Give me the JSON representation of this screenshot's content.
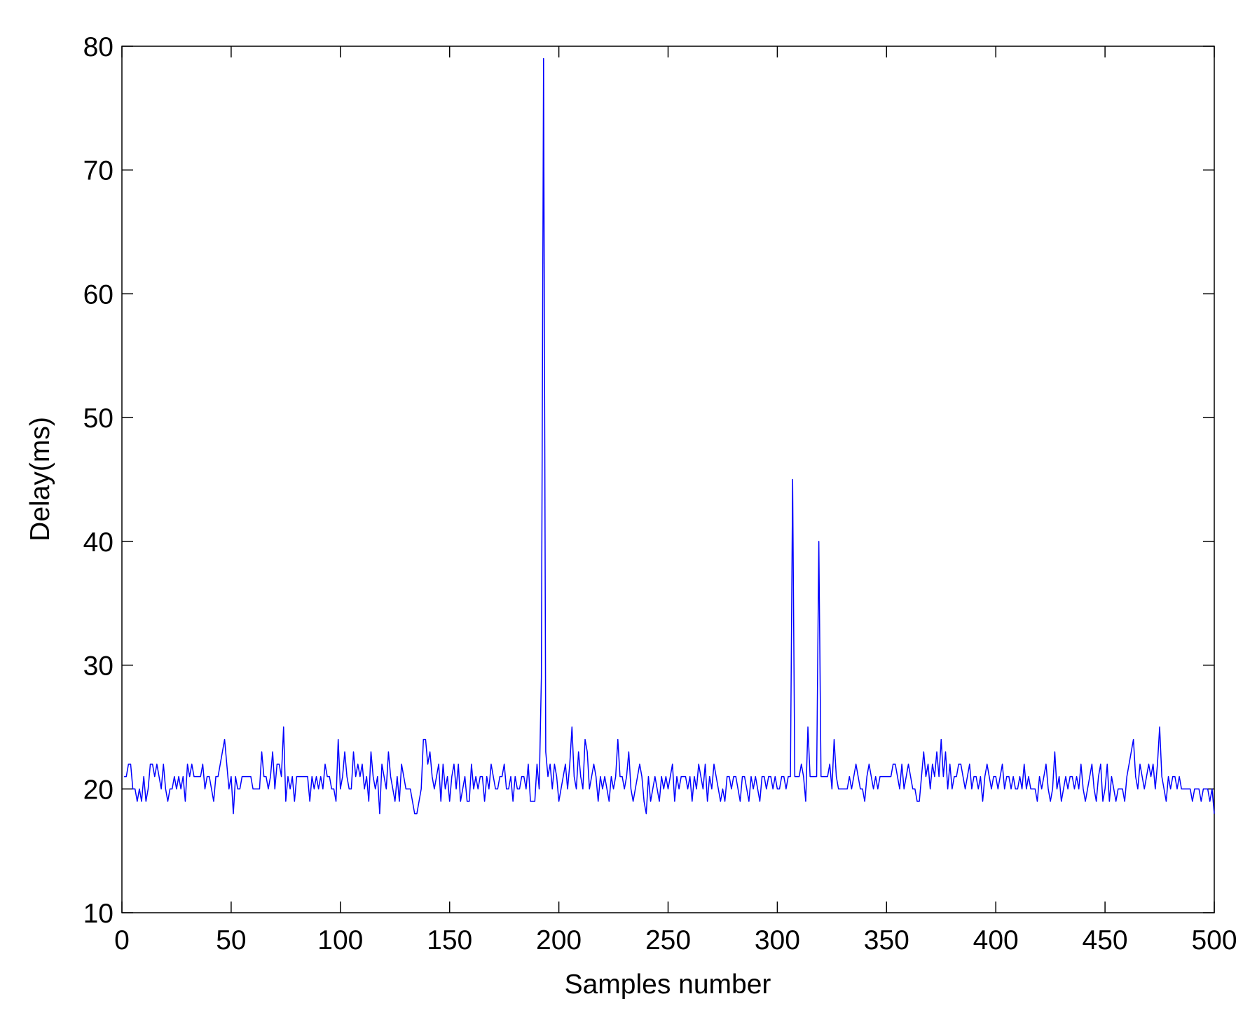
{
  "chart_data": {
    "type": "line",
    "xlabel": "Samples number",
    "ylabel": "Delay(ms)",
    "color": "#0000ff",
    "xlim": [
      0,
      500
    ],
    "xticks": [
      0,
      50,
      100,
      150,
      200,
      250,
      300,
      350,
      400,
      450,
      500
    ],
    "ylim": [
      10,
      80
    ],
    "yticks": [
      10,
      20,
      30,
      40,
      50,
      60,
      70,
      80
    ],
    "x": [
      1,
      2,
      3,
      4,
      5,
      6,
      7,
      8,
      9,
      10,
      11,
      12,
      13,
      14,
      15,
      16,
      17,
      18,
      19,
      20,
      21,
      22,
      23,
      24,
      25,
      26,
      27,
      28,
      29,
      30,
      31,
      32,
      33,
      34,
      35,
      36,
      37,
      38,
      39,
      40,
      41,
      42,
      43,
      44,
      45,
      46,
      47,
      48,
      49,
      50,
      51,
      52,
      53,
      54,
      55,
      56,
      57,
      58,
      59,
      60,
      61,
      62,
      63,
      64,
      65,
      66,
      67,
      68,
      69,
      70,
      71,
      72,
      73,
      74,
      75,
      76,
      77,
      78,
      79,
      80,
      81,
      82,
      83,
      84,
      85,
      86,
      87,
      88,
      89,
      90,
      91,
      92,
      93,
      94,
      95,
      96,
      97,
      98,
      99,
      100,
      101,
      102,
      103,
      104,
      105,
      106,
      107,
      108,
      109,
      110,
      111,
      112,
      113,
      114,
      115,
      116,
      117,
      118,
      119,
      120,
      121,
      122,
      123,
      124,
      125,
      126,
      127,
      128,
      129,
      130,
      131,
      132,
      133,
      134,
      135,
      136,
      137,
      138,
      139,
      140,
      141,
      142,
      143,
      144,
      145,
      146,
      147,
      148,
      149,
      150,
      151,
      152,
      153,
      154,
      155,
      156,
      157,
      158,
      159,
      160,
      161,
      162,
      163,
      164,
      165,
      166,
      167,
      168,
      169,
      170,
      171,
      172,
      173,
      174,
      175,
      176,
      177,
      178,
      179,
      180,
      181,
      182,
      183,
      184,
      185,
      186,
      187,
      188,
      189,
      190,
      191,
      192,
      193,
      194,
      195,
      196,
      197,
      198,
      199,
      200,
      201,
      202,
      203,
      204,
      205,
      206,
      207,
      208,
      209,
      210,
      211,
      212,
      213,
      214,
      215,
      216,
      217,
      218,
      219,
      220,
      221,
      222,
      223,
      224,
      225,
      226,
      227,
      228,
      229,
      230,
      231,
      232,
      233,
      234,
      235,
      236,
      237,
      238,
      239,
      240,
      241,
      242,
      243,
      244,
      245,
      246,
      247,
      248,
      249,
      250,
      251,
      252,
      253,
      254,
      255,
      256,
      257,
      258,
      259,
      260,
      261,
      262,
      263,
      264,
      265,
      266,
      267,
      268,
      269,
      270,
      271,
      272,
      273,
      274,
      275,
      276,
      277,
      278,
      279,
      280,
      281,
      282,
      283,
      284,
      285,
      286,
      287,
      288,
      289,
      290,
      291,
      292,
      293,
      294,
      295,
      296,
      297,
      298,
      299,
      300,
      301,
      302,
      303,
      304,
      305,
      306,
      307,
      308,
      309,
      310,
      311,
      312,
      313,
      314,
      315,
      316,
      317,
      318,
      319,
      320,
      321,
      322,
      323,
      324,
      325,
      326,
      327,
      328,
      329,
      330,
      331,
      332,
      333,
      334,
      335,
      336,
      337,
      338,
      339,
      340,
      341,
      342,
      343,
      344,
      345,
      346,
      347,
      348,
      349,
      350,
      351,
      352,
      353,
      354,
      355,
      356,
      357,
      358,
      359,
      360,
      361,
      362,
      363,
      364,
      365,
      366,
      367,
      368,
      369,
      370,
      371,
      372,
      373,
      374,
      375,
      376,
      377,
      378,
      379,
      380,
      381,
      382,
      383,
      384,
      385,
      386,
      387,
      388,
      389,
      390,
      391,
      392,
      393,
      394,
      395,
      396,
      397,
      398,
      399,
      400,
      401,
      402,
      403,
      404,
      405,
      406,
      407,
      408,
      409,
      410,
      411,
      412,
      413,
      414,
      415,
      416,
      417,
      418,
      419,
      420,
      421,
      422,
      423,
      424,
      425,
      426,
      427,
      428,
      429,
      430,
      431,
      432,
      433,
      434,
      435,
      436,
      437,
      438,
      439,
      440,
      441,
      442,
      443,
      444,
      445,
      446,
      447,
      448,
      449,
      450,
      451,
      452,
      453,
      454,
      455,
      456,
      457,
      458,
      459,
      460,
      461,
      462,
      463,
      464,
      465,
      466,
      467,
      468,
      469,
      470,
      471,
      472,
      473,
      474,
      475,
      476,
      477,
      478,
      479,
      480,
      481,
      482,
      483,
      484,
      485,
      486,
      487,
      488,
      489,
      490,
      491,
      492,
      493,
      494,
      495,
      496,
      497,
      498,
      499,
      500
    ],
    "values": [
      21,
      21,
      22,
      22,
      20,
      20,
      19,
      20,
      19,
      21,
      19,
      20,
      22,
      22,
      21,
      22,
      21,
      20,
      22,
      20,
      19,
      20,
      20,
      21,
      20,
      21,
      20,
      21,
      19,
      22,
      21,
      22,
      21,
      21,
      21,
      21,
      22,
      20,
      21,
      21,
      20,
      19,
      21,
      21,
      22,
      23,
      24,
      22,
      20,
      21,
      18,
      21,
      20,
      20,
      21,
      21,
      21,
      21,
      21,
      20,
      20,
      20,
      20,
      23,
      21,
      21,
      20,
      21,
      23,
      20,
      22,
      22,
      21,
      25,
      19,
      21,
      20,
      21,
      19,
      21,
      21,
      21,
      21,
      21,
      21,
      19,
      21,
      20,
      21,
      20,
      21,
      20,
      22,
      21,
      21,
      20,
      20,
      19,
      24,
      20,
      21,
      23,
      21,
      20,
      20,
      23,
      21,
      22,
      21,
      22,
      20,
      21,
      19,
      23,
      21,
      20,
      21,
      18,
      22,
      21,
      20,
      23,
      21,
      20,
      19,
      21,
      19,
      22,
      21,
      20,
      20,
      20,
      19,
      18,
      18,
      19,
      20,
      24,
      24,
      22,
      23,
      21,
      20,
      21,
      22,
      19,
      22,
      20,
      21,
      19,
      21,
      22,
      20,
      22,
      19,
      20,
      21,
      19,
      19,
      22,
      20,
      21,
      20,
      21,
      21,
      19,
      21,
      20,
      22,
      21,
      20,
      20,
      21,
      21,
      22,
      20,
      20,
      21,
      19,
      21,
      20,
      20,
      21,
      21,
      20,
      22,
      19,
      19,
      19,
      22,
      20,
      29,
      79,
      23,
      21,
      22,
      20,
      22,
      21,
      19,
      20,
      21,
      22,
      20,
      22,
      25,
      21,
      20,
      23,
      21,
      20,
      24,
      23,
      20,
      21,
      22,
      21,
      19,
      21,
      20,
      21,
      20,
      19,
      21,
      20,
      21,
      24,
      21,
      21,
      20,
      21,
      23,
      20,
      19,
      20,
      21,
      22,
      21,
      19,
      18,
      21,
      19,
      20,
      21,
      20,
      19,
      21,
      20,
      21,
      20,
      21,
      22,
      19,
      21,
      20,
      21,
      21,
      21,
      20,
      21,
      19,
      21,
      20,
      22,
      21,
      20,
      22,
      19,
      21,
      20,
      22,
      21,
      20,
      19,
      20,
      19,
      21,
      21,
      20,
      21,
      21,
      20,
      19,
      21,
      21,
      20,
      19,
      21,
      20,
      21,
      20,
      19,
      21,
      21,
      20,
      21,
      21,
      20,
      21,
      20,
      20,
      21,
      21,
      20,
      21,
      21,
      45,
      21,
      21,
      21,
      22,
      21,
      19,
      25,
      21,
      21,
      21,
      21,
      40,
      21,
      21,
      21,
      21,
      22,
      20,
      24,
      21,
      20,
      20,
      20,
      20,
      20,
      21,
      20,
      21,
      22,
      21,
      20,
      20,
      19,
      21,
      22,
      21,
      20,
      21,
      20,
      21,
      21,
      21,
      21,
      21,
      21,
      22,
      22,
      21,
      20,
      22,
      20,
      21,
      22,
      21,
      20,
      20,
      19,
      19,
      21,
      23,
      21,
      22,
      20,
      22,
      21,
      23,
      21,
      24,
      21,
      23,
      20,
      22,
      20,
      21,
      21,
      22,
      22,
      21,
      20,
      21,
      22,
      20,
      21,
      21,
      20,
      21,
      19,
      21,
      22,
      21,
      20,
      21,
      21,
      20,
      21,
      22,
      20,
      21,
      21,
      20,
      21,
      20,
      20,
      21,
      20,
      22,
      20,
      21,
      20,
      20,
      20,
      19,
      21,
      20,
      21,
      22,
      20,
      19,
      20,
      23,
      20,
      21,
      19,
      20,
      21,
      20,
      21,
      21,
      20,
      21,
      20,
      22,
      20,
      19,
      20,
      21,
      22,
      20,
      19,
      21,
      22,
      19,
      20,
      22,
      19,
      21,
      20,
      19,
      20,
      20,
      20,
      19,
      21,
      22,
      23,
      24,
      21,
      20,
      22,
      21,
      20,
      21,
      22,
      21,
      22,
      20,
      22,
      25,
      21,
      20,
      19,
      21,
      20,
      21,
      21,
      20,
      21,
      20,
      20,
      20,
      20,
      20,
      19,
      20,
      20,
      20,
      19,
      20,
      20,
      20,
      19,
      20,
      18
    ]
  }
}
